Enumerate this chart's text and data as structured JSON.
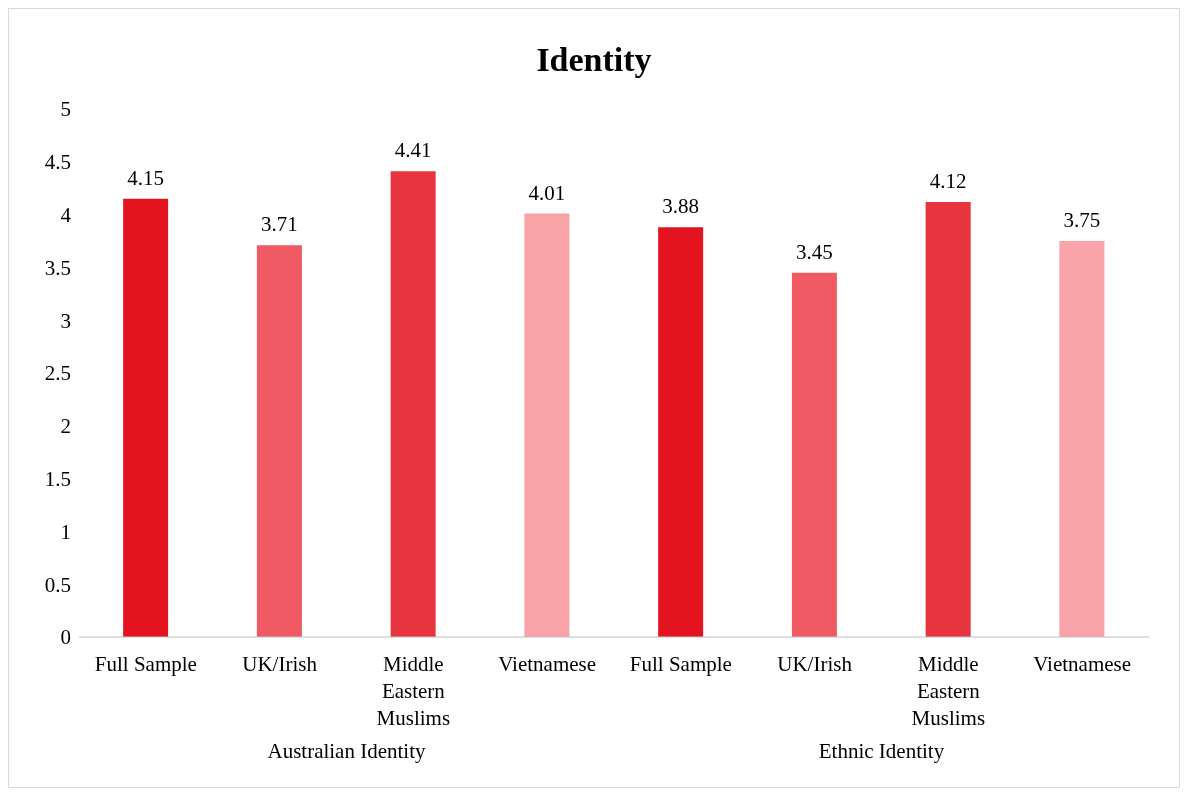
{
  "chart_data": {
    "type": "bar",
    "title": "Identity",
    "categories": [
      "Full Sample",
      "UK/Irish",
      "Middle Eastern Muslims",
      "Vietnamese",
      "Full Sample",
      "UK/Irish",
      "Middle Eastern Muslims",
      "Vietnamese"
    ],
    "values": [
      4.15,
      3.71,
      4.41,
      4.01,
      3.88,
      3.45,
      4.12,
      3.75
    ],
    "colors": [
      "#e3141f",
      "#f05a64",
      "#e8343f",
      "#f7a3a8",
      "#e3141f",
      "#f05a64",
      "#e8343f",
      "#f7a3a8"
    ],
    "ylim": [
      0,
      5
    ],
    "yticks": [
      0,
      0.5,
      1,
      1.5,
      2,
      2.5,
      3,
      3.5,
      4,
      4.5,
      5
    ],
    "grid": false,
    "data_labels": true,
    "annotations": [
      "Australian Identity",
      "Ethnic Identity"
    ]
  }
}
